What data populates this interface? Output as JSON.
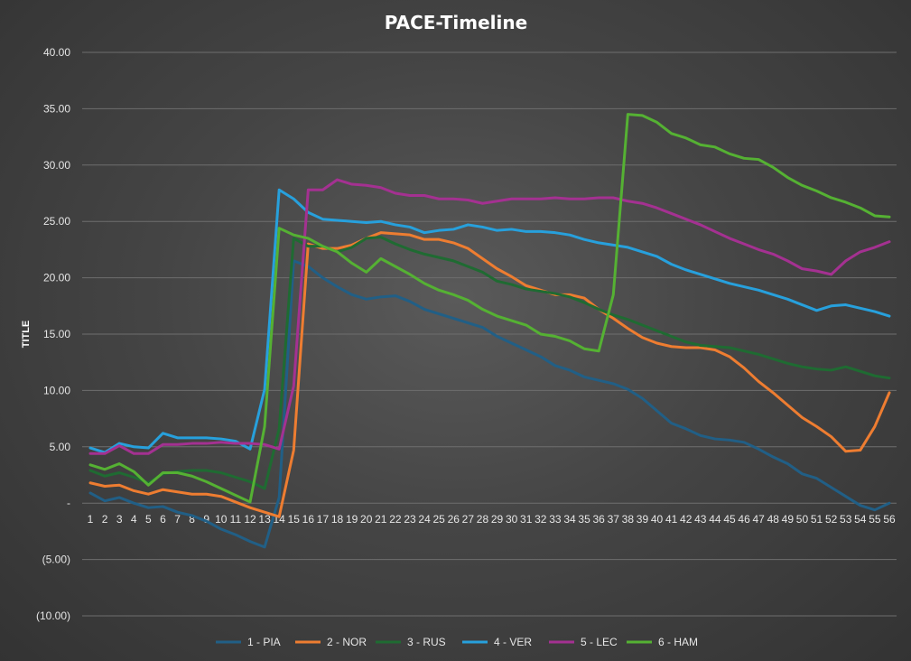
{
  "chart_data": {
    "type": "line",
    "title": "PACE-Timeline",
    "xlabel": "",
    "ylabel": "TITLE",
    "ylim": [
      -10,
      40
    ],
    "ytick_values": [
      40,
      35,
      30,
      25,
      20,
      15,
      10,
      5,
      0,
      -5,
      -10
    ],
    "ytick_labels": [
      "40.00",
      "35.00",
      "30.00",
      "25.00",
      "20.00",
      "15.00",
      "10.00",
      "5.00",
      "-",
      "(5.00)",
      "(10.00)"
    ],
    "grid": true,
    "legend_position": "bottom",
    "categories": [
      "1",
      "2",
      "3",
      "4",
      "5",
      "6",
      "7",
      "8",
      "9",
      "10",
      "11",
      "12",
      "13",
      "14",
      "15",
      "16",
      "17",
      "18",
      "19",
      "20",
      "21",
      "22",
      "23",
      "24",
      "25",
      "26",
      "27",
      "28",
      "29",
      "30",
      "31",
      "32",
      "33",
      "34",
      "35",
      "36",
      "37",
      "38",
      "39",
      "40",
      "41",
      "42",
      "43",
      "44",
      "45",
      "46",
      "47",
      "48",
      "49",
      "50",
      "51",
      "52",
      "53",
      "54",
      "55",
      "56"
    ],
    "series": [
      {
        "name": "1 - PIA",
        "color": "#215f86",
        "values": [
          0.9,
          0.2,
          0.5,
          0.0,
          -0.4,
          -0.3,
          -0.8,
          -1.1,
          -1.6,
          -2.3,
          -2.8,
          -3.4,
          -3.9,
          0.5,
          21.5,
          21.0,
          20.0,
          19.2,
          18.5,
          18.1,
          18.3,
          18.4,
          17.9,
          17.2,
          16.8,
          16.4,
          16.0,
          15.6,
          14.8,
          14.2,
          13.6,
          13.0,
          12.2,
          11.8,
          11.2,
          10.9,
          10.6,
          10.1,
          9.3,
          8.2,
          7.1,
          6.6,
          6.0,
          5.7,
          5.6,
          5.4,
          4.8,
          4.1,
          3.5,
          2.6,
          2.2,
          1.4,
          0.6,
          -0.2,
          -0.6,
          0.0
        ]
      },
      {
        "name": "2 - NOR",
        "color": "#ee7d31",
        "values": [
          1.8,
          1.5,
          1.6,
          1.1,
          0.8,
          1.2,
          1.0,
          0.8,
          0.8,
          0.6,
          0.1,
          -0.4,
          -0.8,
          -1.2,
          4.7,
          23.0,
          22.6,
          22.6,
          22.9,
          23.5,
          24.0,
          23.9,
          23.8,
          23.4,
          23.4,
          23.1,
          22.6,
          21.7,
          20.8,
          20.1,
          19.3,
          18.9,
          18.5,
          18.5,
          18.2,
          17.2,
          16.4,
          15.5,
          14.7,
          14.2,
          13.9,
          13.8,
          13.8,
          13.6,
          13.0,
          12.0,
          10.8,
          9.8,
          8.7,
          7.6,
          6.8,
          5.9,
          4.6,
          4.7,
          6.8,
          9.8
        ]
      },
      {
        "name": "3 - RUS",
        "color": "#1f6b32",
        "values": [
          2.9,
          2.4,
          2.7,
          2.3,
          1.8,
          2.6,
          2.8,
          2.9,
          2.9,
          2.7,
          2.3,
          1.9,
          1.3,
          6.6,
          23.5,
          22.8,
          22.8,
          22.3,
          22.7,
          23.5,
          23.6,
          23.0,
          22.5,
          22.1,
          21.8,
          21.5,
          21.0,
          20.5,
          19.7,
          19.4,
          19.0,
          18.8,
          18.6,
          18.3,
          17.8,
          17.2,
          16.7,
          16.3,
          15.8,
          15.3,
          14.8,
          14.3,
          14.0,
          13.9,
          13.8,
          13.5,
          13.2,
          12.8,
          12.4,
          12.1,
          11.9,
          11.8,
          12.1,
          11.7,
          11.3,
          11.1
        ]
      },
      {
        "name": "4 - VER",
        "color": "#27a0dc",
        "values": [
          4.9,
          4.5,
          5.3,
          5.0,
          4.9,
          6.2,
          5.8,
          5.8,
          5.8,
          5.7,
          5.5,
          4.8,
          10.1,
          27.8,
          27.0,
          25.8,
          25.2,
          25.1,
          25.0,
          24.9,
          25.0,
          24.7,
          24.5,
          24.0,
          24.2,
          24.3,
          24.7,
          24.5,
          24.2,
          24.3,
          24.1,
          24.1,
          24.0,
          23.8,
          23.4,
          23.1,
          22.9,
          22.7,
          22.3,
          21.9,
          21.2,
          20.7,
          20.3,
          19.9,
          19.5,
          19.2,
          18.9,
          18.5,
          18.1,
          17.6,
          17.1,
          17.5,
          17.6,
          17.3,
          17.0,
          16.6
        ]
      },
      {
        "name": "5 - LEC",
        "color": "#a43191",
        "values": [
          4.4,
          4.4,
          5.1,
          4.4,
          4.4,
          5.2,
          5.2,
          5.3,
          5.3,
          5.4,
          5.3,
          5.3,
          5.2,
          4.8,
          10.4,
          27.8,
          27.8,
          28.7,
          28.3,
          28.2,
          28.0,
          27.5,
          27.3,
          27.3,
          27.0,
          27.0,
          26.9,
          26.6,
          26.8,
          27.0,
          27.0,
          27.0,
          27.1,
          27.0,
          27.0,
          27.1,
          27.1,
          26.8,
          26.6,
          26.2,
          25.7,
          25.2,
          24.7,
          24.1,
          23.5,
          23.0,
          22.5,
          22.1,
          21.5,
          20.8,
          20.6,
          20.3,
          21.5,
          22.3,
          22.7,
          23.2
        ]
      },
      {
        "name": "6 - HAM",
        "color": "#55b133",
        "values": [
          3.4,
          3.0,
          3.5,
          2.8,
          1.6,
          2.7,
          2.7,
          2.4,
          1.9,
          1.3,
          0.7,
          0.1,
          6.8,
          24.4,
          23.8,
          23.5,
          22.8,
          22.3,
          21.3,
          20.5,
          21.7,
          21.0,
          20.3,
          19.5,
          18.9,
          18.5,
          18.0,
          17.2,
          16.6,
          16.2,
          15.8,
          15.0,
          14.8,
          14.4,
          13.7,
          13.5,
          18.5,
          34.5,
          34.4,
          33.8,
          32.8,
          32.4,
          31.8,
          31.6,
          31.0,
          30.6,
          30.5,
          29.8,
          28.9,
          28.2,
          27.7,
          27.1,
          26.7,
          26.2,
          25.5,
          25.4
        ]
      }
    ]
  }
}
